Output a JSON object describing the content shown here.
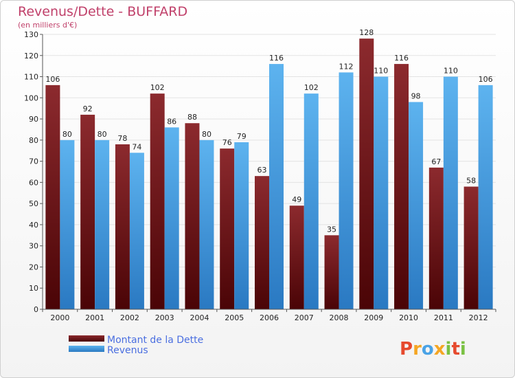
{
  "chart_data": {
    "type": "bar",
    "title": "Revenus/Dette - BUFFARD",
    "subtitle": "(en milliers d'€)",
    "categories": [
      "2000",
      "2001",
      "2002",
      "2003",
      "2004",
      "2005",
      "2006",
      "2007",
      "2008",
      "2009",
      "2010",
      "2011",
      "2012"
    ],
    "series": [
      {
        "name": "Montant de la Dette",
        "color": "#7a1a1e",
        "values": [
          106,
          92,
          78,
          102,
          88,
          76,
          63,
          49,
          35,
          128,
          116,
          67,
          58
        ]
      },
      {
        "name": "Revenus",
        "color": "#4aa3e6",
        "values": [
          80,
          80,
          74,
          86,
          80,
          79,
          116,
          102,
          112,
          110,
          98,
          110,
          106
        ]
      }
    ],
    "ylim": [
      0,
      130
    ],
    "yticks": [
      0,
      10,
      20,
      30,
      40,
      50,
      60,
      70,
      80,
      90,
      100,
      110,
      120,
      130
    ],
    "grid": true,
    "legend_position": "bottom-left"
  },
  "brand": {
    "letters": [
      "P",
      "r",
      "o",
      "x",
      "i",
      "t",
      "i"
    ],
    "colors": [
      "#e64a2e",
      "#f5a623",
      "#4aa3e6",
      "#f5a623",
      "#7ac143",
      "#e64a2e",
      "#7ac143"
    ]
  }
}
